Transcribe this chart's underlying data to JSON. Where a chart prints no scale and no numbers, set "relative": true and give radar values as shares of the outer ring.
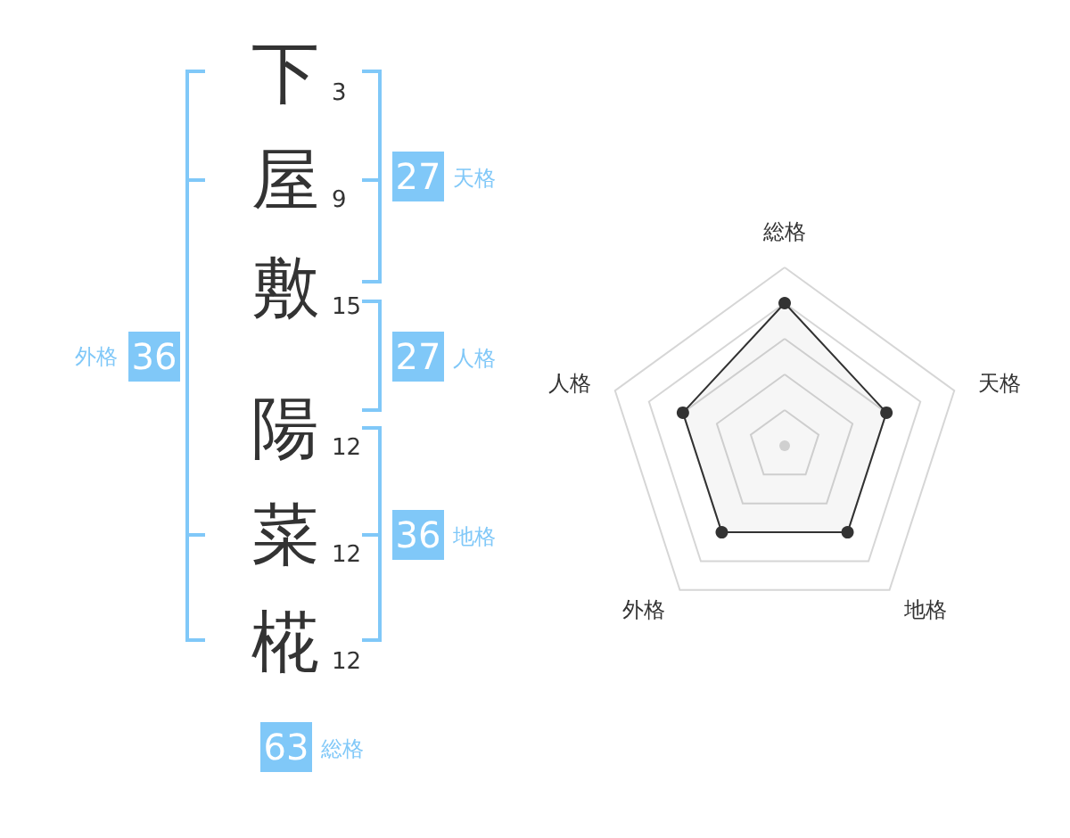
{
  "chart_data": [
    {
      "type": "other",
      "annotations": [
        "下",
        "3",
        "屋",
        "9",
        "敷",
        "15",
        "陽",
        "12",
        "菜",
        "12",
        "椛",
        "12",
        "27",
        "天格",
        "27",
        "人格",
        "36",
        "地格",
        "36",
        "外格",
        "63",
        "総格"
      ]
    },
    {
      "type": "radar",
      "categories": [
        "総格",
        "天格",
        "地格",
        "外格",
        "人格"
      ],
      "relative": true,
      "grid": true,
      "marker": "circle",
      "series": [
        {
          "color": "#333333",
          "values": [
            0.8,
            0.6,
            0.6,
            0.6,
            0.6
          ]
        }
      ]
    }
  ]
}
